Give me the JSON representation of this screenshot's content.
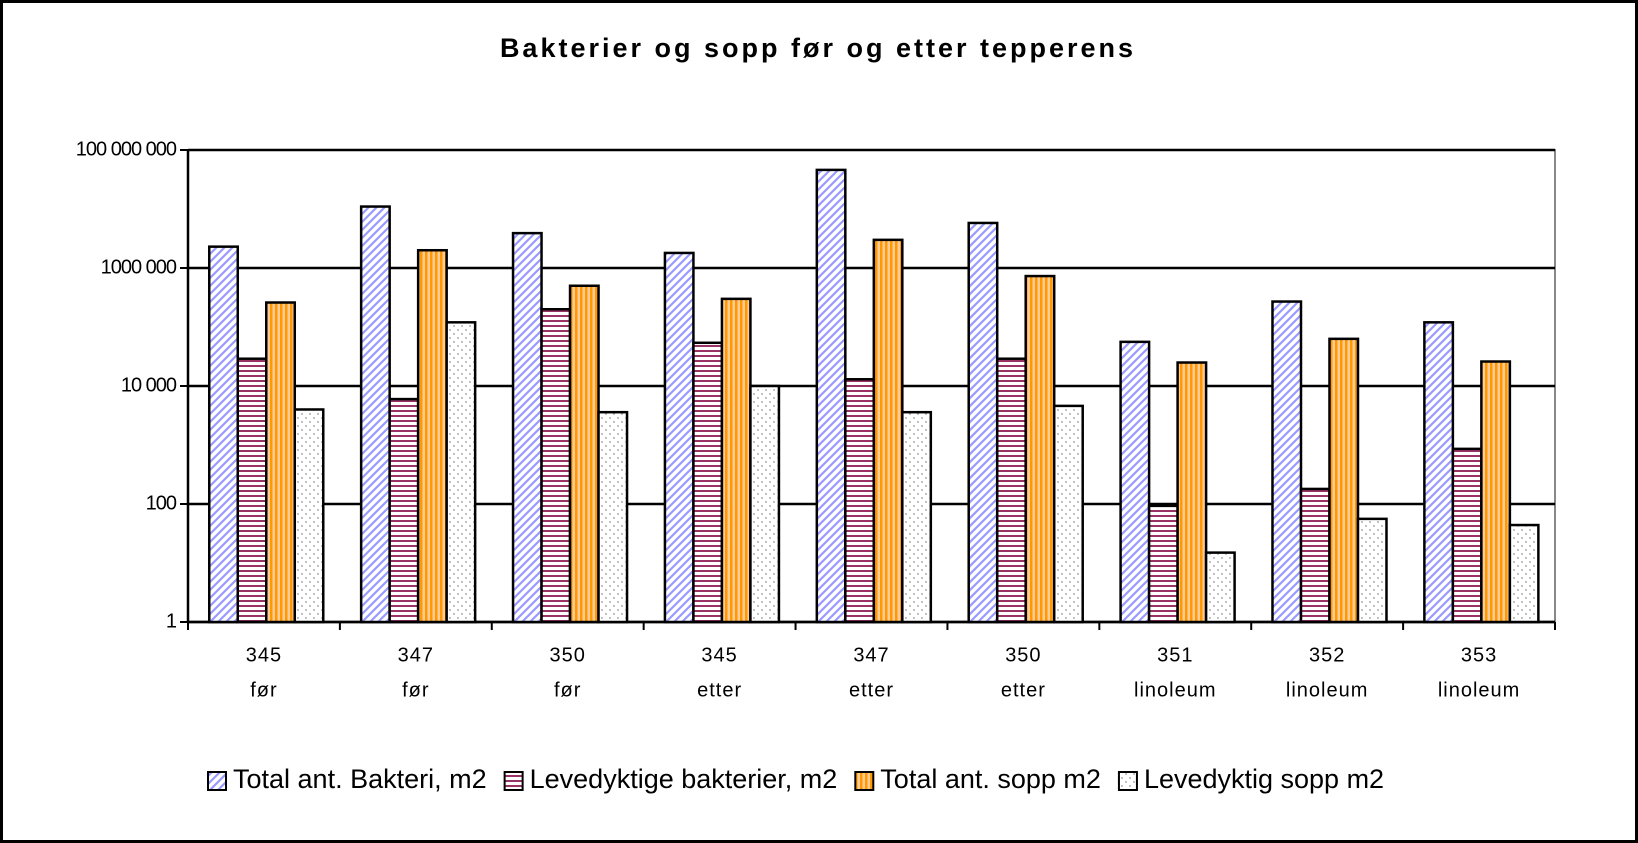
{
  "chart_data": {
    "type": "bar",
    "title": "Bakterier og sopp før og etter  tepperens",
    "categories": [
      [
        "345",
        "før"
      ],
      [
        "347",
        "før"
      ],
      [
        "350",
        "før"
      ],
      [
        "345",
        "etter"
      ],
      [
        "347",
        "etter"
      ],
      [
        "350",
        "etter"
      ],
      [
        "351",
        "linoleum"
      ],
      [
        "352",
        "linoleum"
      ],
      [
        "353",
        "linoleum"
      ]
    ],
    "series": [
      {
        "name": "Total ant. Bakteri, m2",
        "color": "#9999ff",
        "values": [
          2300000,
          11000000,
          3900000,
          1800000,
          46000000,
          5800000,
          56000,
          270000,
          120000
        ]
      },
      {
        "name": "Levedyktige bakterier, m2",
        "color": "#993366",
        "values": [
          29000,
          6000,
          200000,
          54000,
          13000,
          29000,
          93,
          180,
          860
        ]
      },
      {
        "name": "Total ant. sopp m2",
        "color": "#ff9900",
        "values": [
          260000,
          2000000,
          500000,
          300000,
          3000000,
          730000,
          25000,
          63000,
          26000
        ]
      },
      {
        "name": "Levedyktig sopp m2",
        "color": "#ffffff",
        "values": [
          4000,
          120000,
          3600,
          10000,
          3600,
          4600,
          15,
          56,
          44
        ]
      }
    ],
    "log_scale": true,
    "ylim": [
      1,
      100000000
    ],
    "yticks": [
      1,
      100,
      {
        "value": 10000,
        "label": "10 000"
      },
      {
        "value": 1000000,
        "label": "1000 000"
      },
      {
        "value": 100000000,
        "label": "100 000 000"
      }
    ],
    "grid": true,
    "legend": "bottom"
  }
}
